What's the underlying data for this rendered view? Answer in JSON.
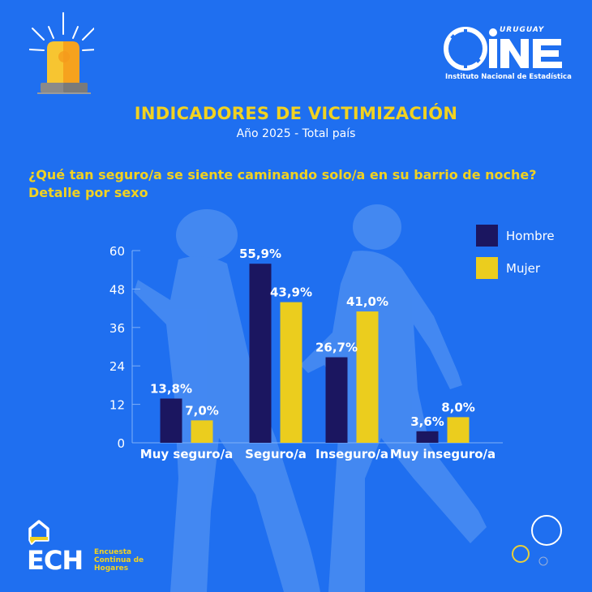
{
  "header": {
    "title": "INDICADORES DE VICTIMIZACIÓN",
    "subtitle": "Año 2025 - Total país",
    "question_line1": "¿Qué tan seguro/a se siente caminando solo/a en su barrio de noche?",
    "question_line2": "Detalle por sexo"
  },
  "logos": {
    "ine_country": "URUGUAY",
    "ine_name": "INE",
    "ine_full": "Instituto Nacional de Estadística",
    "ech_acronym": "ECH",
    "ech_line1": "Encuesta",
    "ech_line2": "Continua de",
    "ech_line3": "Hogares"
  },
  "icons": {
    "siren": "siren-icon",
    "house": "house-icon",
    "circles": "decorative-circles"
  },
  "colors": {
    "background": "#1f6ff0",
    "hombre": "#1b1660",
    "mujer": "#ebcd1e",
    "accent_yellow": "#f1d221"
  },
  "chart_data": {
    "type": "bar",
    "title": "¿Qué tan seguro/a se siente caminando solo/a en su barrio de noche?",
    "subtitle": "Detalle por sexo",
    "xlabel": "",
    "ylabel": "",
    "categories": [
      "Muy seguro/a",
      "Seguro/a",
      "Inseguro/a",
      "Muy inseguro/a"
    ],
    "series": [
      {
        "name": "Hombre",
        "color": "#1b1660",
        "values": [
          13.8,
          55.9,
          26.7,
          3.6
        ],
        "labels": [
          "13,8%",
          "55,9%",
          "26,7%",
          "3,6%"
        ]
      },
      {
        "name": "Mujer",
        "color": "#ebcd1e",
        "values": [
          7.0,
          43.9,
          41.0,
          8.0
        ],
        "labels": [
          "7,0%",
          "43,9%",
          "41,0%",
          "8,0%"
        ]
      }
    ],
    "ylim": [
      0,
      60
    ],
    "yticks": [
      0,
      12,
      24,
      36,
      48,
      60
    ],
    "ytick_labels": [
      "0",
      "12",
      "24",
      "36",
      "48",
      "60"
    ],
    "grid": false,
    "legend": {
      "position": "top-right",
      "entries": [
        "Hombre",
        "Mujer"
      ]
    }
  }
}
